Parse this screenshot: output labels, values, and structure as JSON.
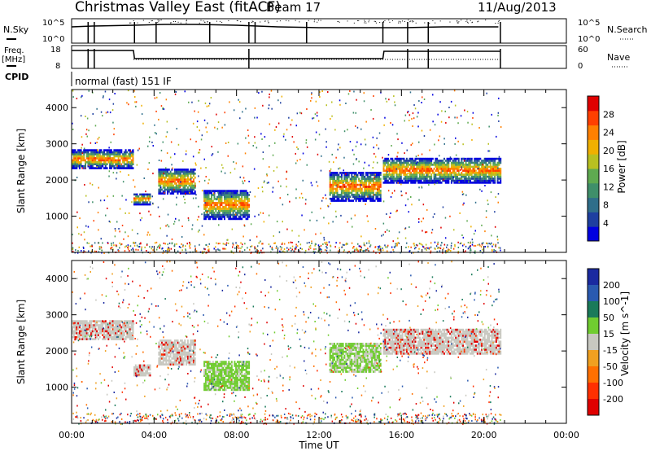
{
  "header": {
    "title": "Christmas Valley East (fitACF)",
    "beam": "Beam 17",
    "date": "11/Aug/2013"
  },
  "param_panels": {
    "nsky": {
      "label": "N.Sky",
      "top_tick": "10^5",
      "bottom_tick": "10^0",
      "right_label": "N.Search",
      "right_top_tick": "10^5",
      "right_bottom_tick": "10^0"
    },
    "freq": {
      "label_line1": "Freq.",
      "label_line2": "[MHz]",
      "top_tick": "18",
      "bottom_tick": "8",
      "right_label": "Nave",
      "right_top_tick": "60",
      "right_bottom_tick": "0"
    },
    "cpid": {
      "label": "CPID",
      "value": "normal (fast) 151 IF"
    }
  },
  "chart_data": [
    {
      "type": "heatmap",
      "name": "power",
      "ylabel": "Slant Range [km]",
      "xlabel": "Time UT",
      "xlim": [
        "00:00",
        "24:00"
      ],
      "ylim": [
        0,
        4500
      ],
      "y_ticks": [
        1000,
        2000,
        3000,
        4000
      ],
      "x_ticks": [
        "00:00",
        "04:00",
        "08:00",
        "12:00",
        "16:00",
        "20:00",
        "00:00"
      ],
      "colorbar": {
        "label": "Power [dB]",
        "ticks": [
          4,
          8,
          12,
          16,
          20,
          24,
          28
        ],
        "range": [
          0,
          32
        ],
        "colors": [
          "#0000e0",
          "#1e3fa0",
          "#2f6e8a",
          "#3f8f6a",
          "#5faa50",
          "#b8c020",
          "#f0b000",
          "#ff8000",
          "#ff4000",
          "#e00000"
        ]
      },
      "features": [
        {
          "desc": "scatter band",
          "t_hours": [
            0.0,
            3.0
          ],
          "range_km": [
            2300,
            2800
          ]
        },
        {
          "desc": "scatter band",
          "t_hours": [
            3.0,
            3.8
          ],
          "range_km": [
            1300,
            1600
          ]
        },
        {
          "desc": "scatter band",
          "t_hours": [
            4.2,
            6.0
          ],
          "range_km": [
            1600,
            2300
          ]
        },
        {
          "desc": "scatter band",
          "t_hours": [
            6.4,
            8.6
          ],
          "range_km": [
            900,
            1700
          ]
        },
        {
          "desc": "scatter band",
          "t_hours": [
            12.5,
            15.0
          ],
          "range_km": [
            1400,
            2200
          ]
        },
        {
          "desc": "scatter band",
          "t_hours": [
            15.1,
            20.8
          ],
          "range_km": [
            1900,
            2600
          ]
        }
      ]
    },
    {
      "type": "heatmap",
      "name": "velocity",
      "ylabel": "Slant Range [km]",
      "xlabel": "Time UT",
      "xlim": [
        "00:00",
        "24:00"
      ],
      "ylim": [
        0,
        4500
      ],
      "y_ticks": [
        1000,
        2000,
        3000,
        4000
      ],
      "x_ticks": [
        "00:00",
        "04:00",
        "08:00",
        "12:00",
        "16:00",
        "20:00",
        "00:00"
      ],
      "colorbar": {
        "label": "Velocity [m s^-1]",
        "ticks": [
          "200",
          "100",
          "50",
          "15",
          "-15",
          "-50",
          "-100",
          "-200"
        ],
        "colors": [
          "#1a2aa0",
          "#2a5ab0",
          "#1a7a5a",
          "#70cc30",
          "#c8c8c0",
          "#f0a020",
          "#ff7000",
          "#ff3000",
          "#e00000"
        ]
      }
    }
  ]
}
